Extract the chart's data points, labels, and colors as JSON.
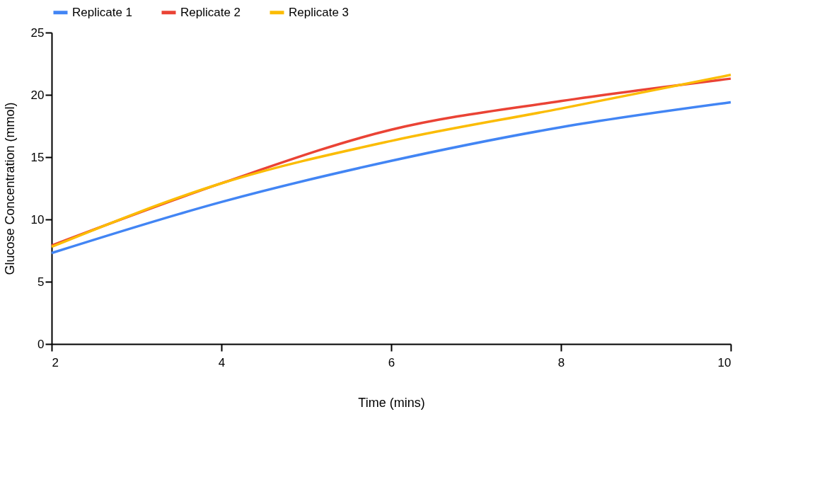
{
  "chart_data": {
    "type": "line",
    "xlabel": "Time (mins)",
    "ylabel": "Glucose Concentration (mmol)",
    "x": [
      2,
      4,
      6,
      8,
      10
    ],
    "series": [
      {
        "name": "Replicate 1",
        "color": "#4285f4",
        "values": [
          7.3,
          11.4,
          14.7,
          17.4,
          19.4
        ]
      },
      {
        "name": "Replicate 2",
        "color": "#ea4335",
        "values": [
          7.9,
          12.9,
          17.2,
          19.5,
          21.3
        ]
      },
      {
        "name": "Replicate 3",
        "color": "#fbbc04",
        "values": [
          7.8,
          12.9,
          16.3,
          18.9,
          21.6
        ]
      }
    ],
    "xlim": [
      2,
      10
    ],
    "xticks": [
      2,
      4,
      6,
      8,
      10
    ],
    "ylim": [
      0,
      25
    ],
    "yticks": [
      0,
      5,
      10,
      15,
      20,
      25
    ],
    "grid": false,
    "legend": "top",
    "marker": "none",
    "line_style": "solid"
  }
}
